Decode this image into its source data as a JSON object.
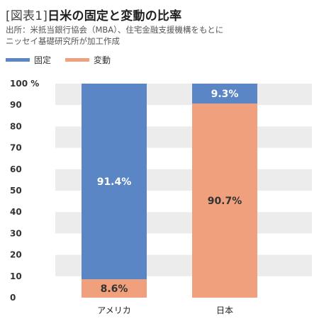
{
  "header": {
    "tag": "[図表1]",
    "title": "日米の固定と変動の比率",
    "source_line1": "出所：米抵当銀行協会（MBA）、住宅金融支援機構をもとに",
    "source_line2": "ニッセイ基礎研究所が加工作成"
  },
  "colors": {
    "fixed": "#5b86c5",
    "variable": "#f0a07c",
    "band": "#ececec"
  },
  "chart_data": {
    "type": "bar",
    "stacked": true,
    "categories": [
      "アメリカ",
      "日本"
    ],
    "series": [
      {
        "name": "変動",
        "values": [
          8.6,
          90.7
        ],
        "labels": [
          "8.6%",
          "90.7%"
        ]
      },
      {
        "name": "固定",
        "values": [
          91.4,
          9.3
        ],
        "labels": [
          "91.4%",
          "9.3%"
        ]
      }
    ],
    "ylim": [
      0,
      100
    ],
    "yticks": [
      "0",
      "10",
      "20",
      "30",
      "40",
      "50",
      "60",
      "70",
      "80",
      "90",
      "100 %"
    ],
    "legend": {
      "placement": "top-left",
      "entries": [
        "固定",
        "変動"
      ]
    },
    "grid": "alternating horizontal bands"
  }
}
